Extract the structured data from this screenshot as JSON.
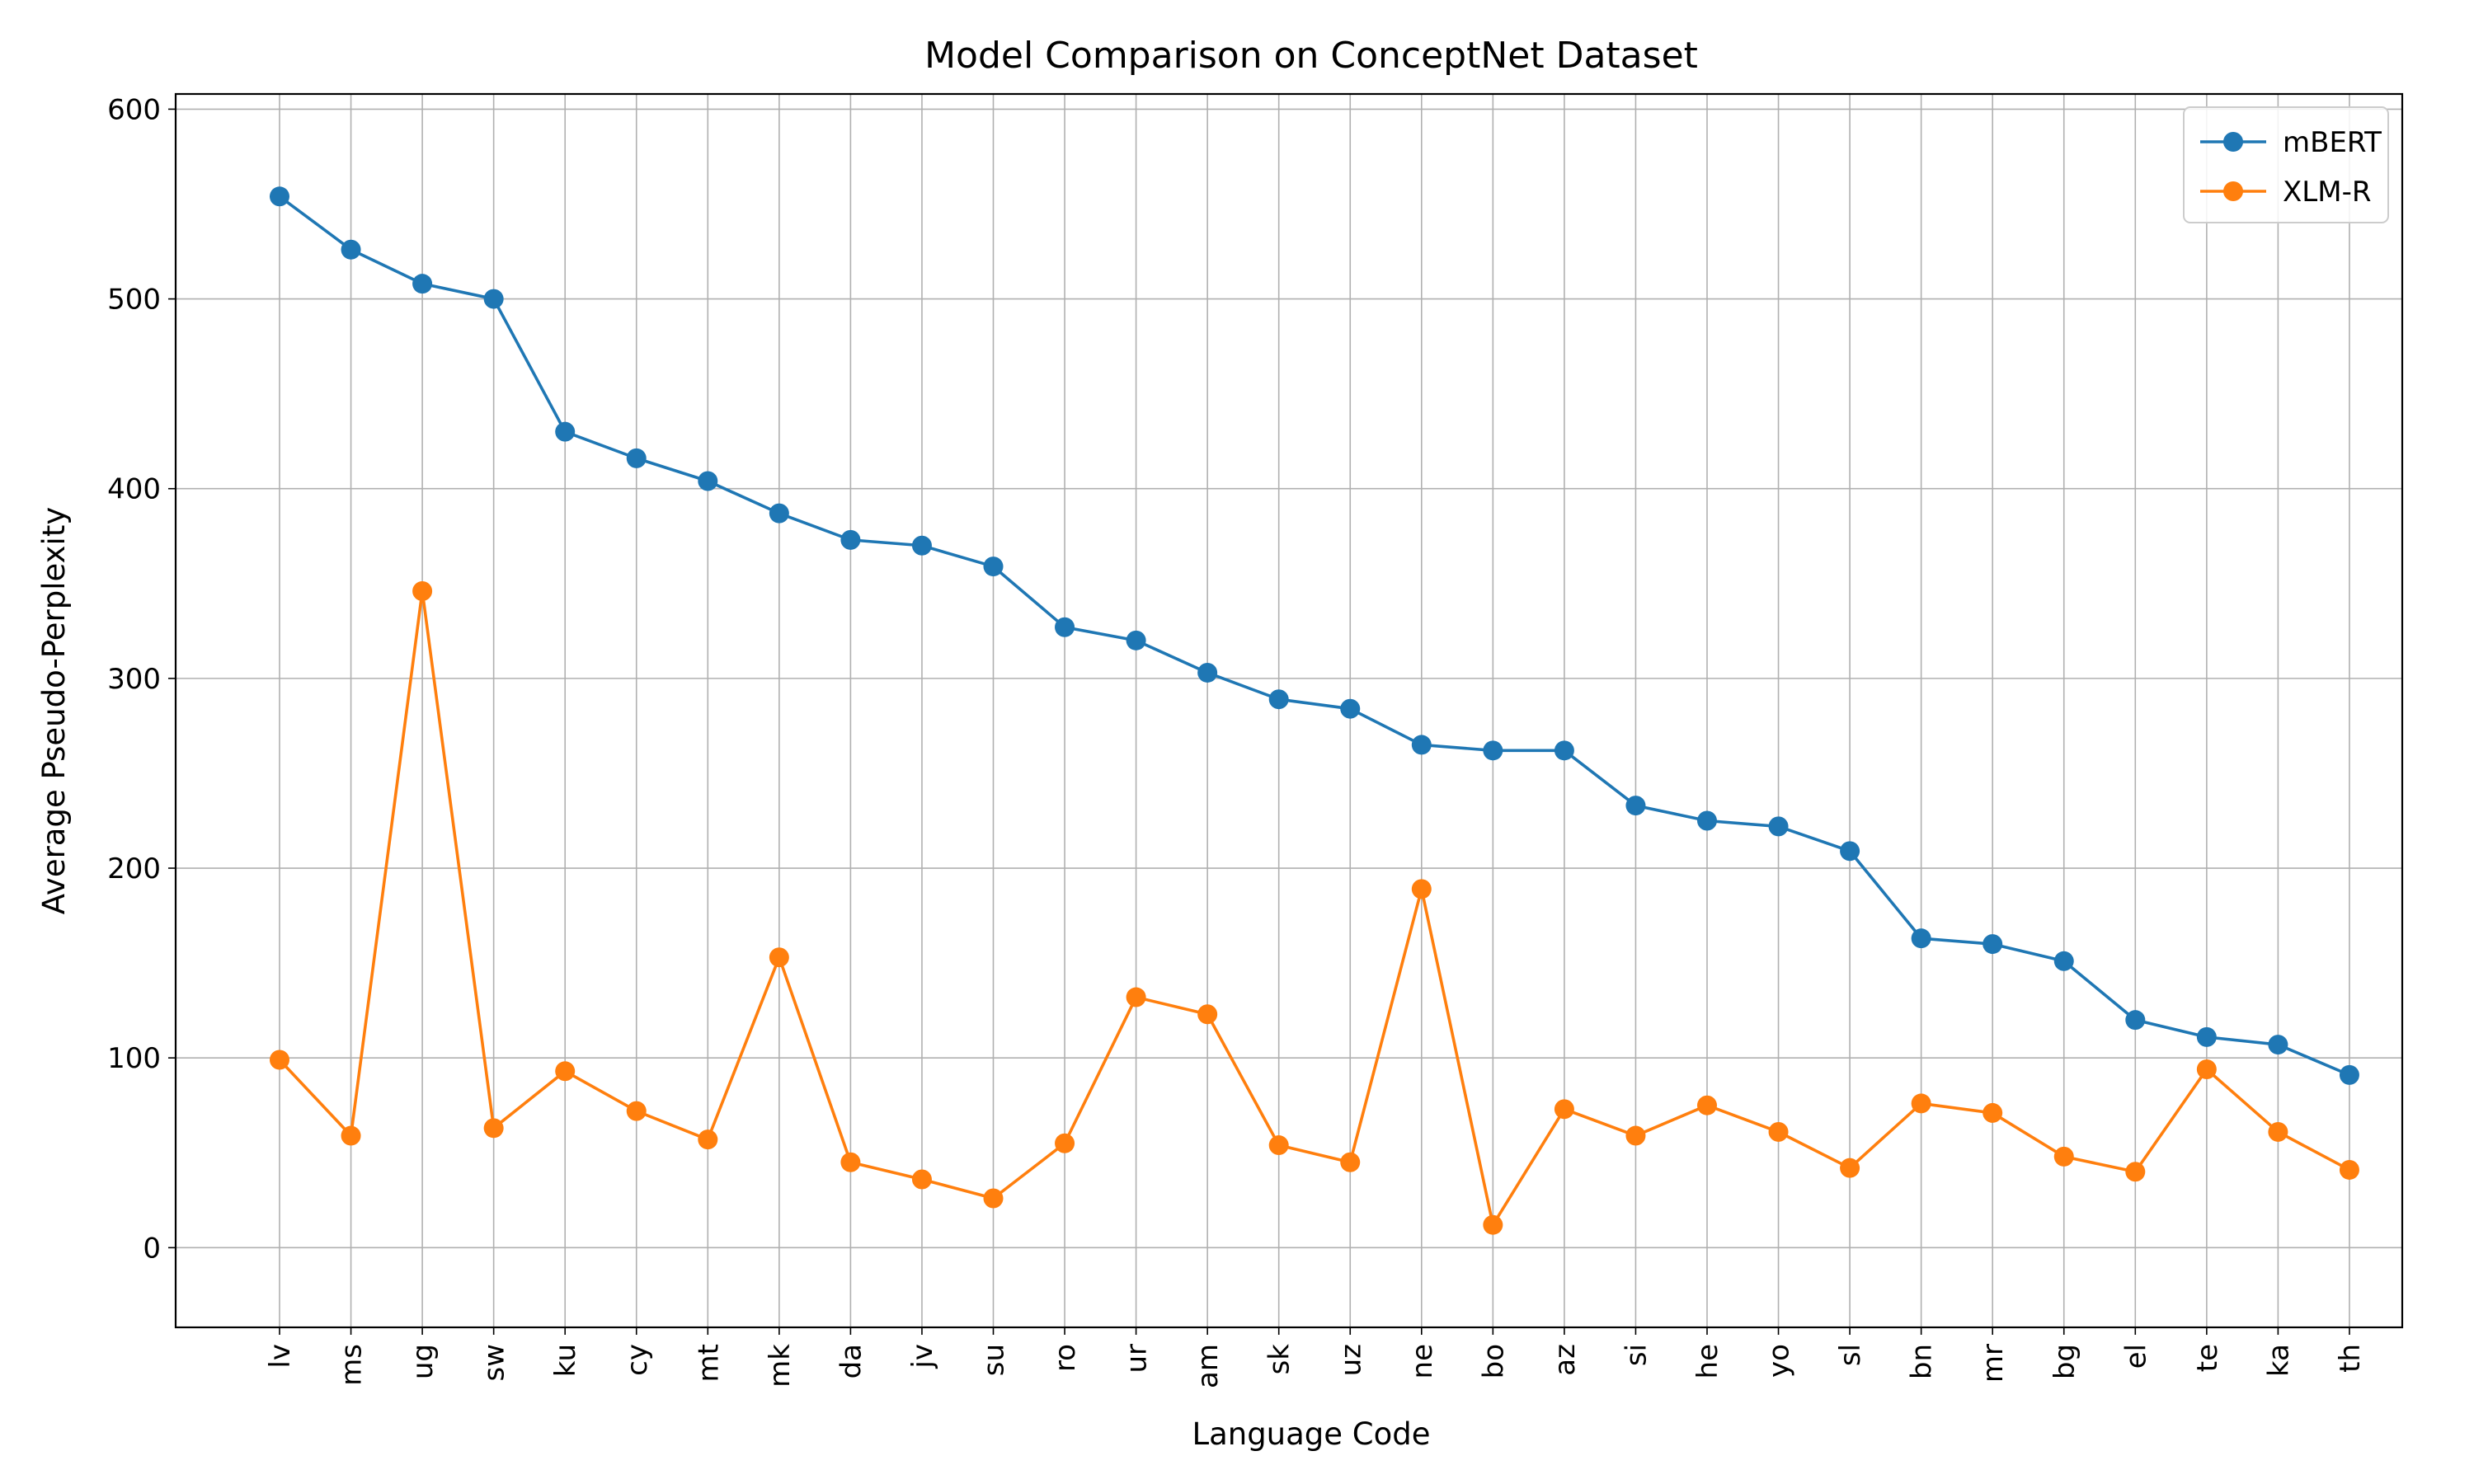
{
  "chart_data": {
    "type": "line",
    "title": "Model Comparison on ConceptNet Dataset",
    "xlabel": "Language Code",
    "ylabel": "Average Pseudo-Perplexity",
    "ylim": [
      -42,
      608
    ],
    "yticks": [
      0,
      100,
      200,
      300,
      400,
      500,
      600
    ],
    "grid": true,
    "legend_position": "top-right",
    "categories": [
      "lv",
      "ms",
      "ug",
      "sw",
      "ku",
      "cy",
      "mt",
      "mk",
      "da",
      "jv",
      "su",
      "ro",
      "ur",
      "am",
      "sk",
      "uz",
      "ne",
      "bo",
      "az",
      "si",
      "he",
      "yo",
      "sl",
      "bn",
      "mr",
      "bg",
      "el",
      "te",
      "ka",
      "th"
    ],
    "series": [
      {
        "name": "mBERT",
        "color": "#1f77b4",
        "values": [
          554,
          526,
          508,
          500,
          430,
          416,
          404,
          387,
          373,
          370,
          359,
          327,
          320,
          303,
          289,
          284,
          265,
          262,
          262,
          233,
          225,
          222,
          209,
          163,
          160,
          151,
          120,
          111,
          107,
          91
        ]
      },
      {
        "name": "XLM-R",
        "color": "#ff7f0e",
        "values": [
          99,
          59,
          346,
          63,
          93,
          72,
          57,
          153,
          45,
          36,
          26,
          55,
          132,
          123,
          54,
          45,
          189,
          12,
          73,
          59,
          75,
          61,
          42,
          76,
          71,
          48,
          40,
          94,
          61,
          41
        ]
      }
    ]
  }
}
